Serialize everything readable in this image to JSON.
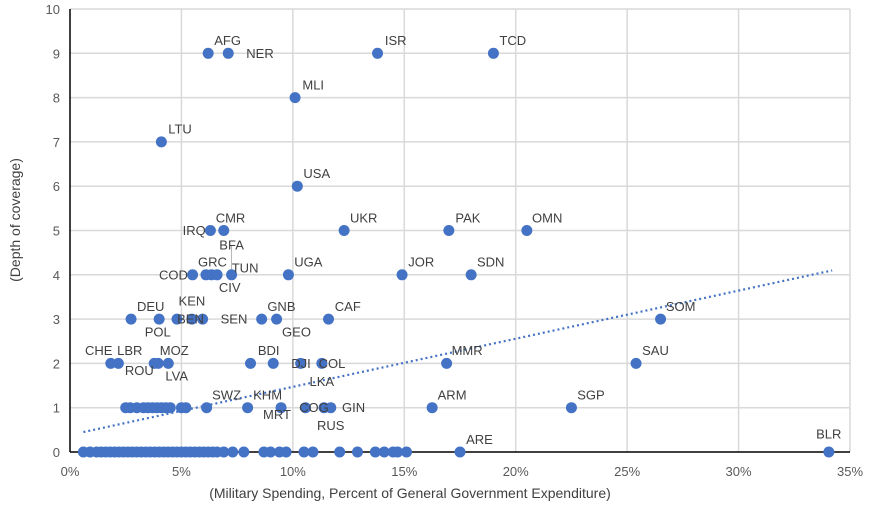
{
  "chart_data": {
    "type": "scatter",
    "title": "",
    "xlabel": "(Military Spending, Percent of General Government Expenditure)",
    "ylabel": "(Depth of coverage)",
    "xlim": [
      0,
      35
    ],
    "ylim": [
      0,
      10
    ],
    "x_ticks": [
      "0%",
      "5%",
      "10%",
      "15%",
      "20%",
      "25%",
      "30%",
      "35%"
    ],
    "y_ticks": [
      "0",
      "1",
      "2",
      "3",
      "4",
      "5",
      "6",
      "7",
      "8",
      "9",
      "10"
    ],
    "grid": true,
    "legend": "none",
    "marker_color": "#4472C4",
    "trendline": {
      "type": "linear",
      "color": "#4472C4",
      "style": "dotted",
      "intercept": 0.385,
      "slope": 0.1086,
      "x_range": [
        0.6,
        34.2
      ]
    },
    "labeled_points": [
      {
        "label": "AFG",
        "x": 6.2,
        "y": 9
      },
      {
        "label": "NER",
        "x": 7.1,
        "y": 9
      },
      {
        "label": "ISR",
        "x": 13.8,
        "y": 9
      },
      {
        "label": "TCD",
        "x": 19.0,
        "y": 9
      },
      {
        "label": "MLI",
        "x": 10.1,
        "y": 8
      },
      {
        "label": "LTU",
        "x": 4.1,
        "y": 7
      },
      {
        "label": "USA",
        "x": 10.2,
        "y": 6
      },
      {
        "label": "CMR",
        "x": 6.3,
        "y": 5
      },
      {
        "label": "IRQ",
        "x": 6.9,
        "y": 5
      },
      {
        "label": "UKR",
        "x": 12.3,
        "y": 5
      },
      {
        "label": "PAK",
        "x": 17.0,
        "y": 5
      },
      {
        "label": "OMN",
        "x": 20.5,
        "y": 5
      },
      {
        "label": "GRC",
        "x": 5.5,
        "y": 4
      },
      {
        "label": "COD",
        "x": 6.1,
        "y": 4
      },
      {
        "label": "CIV",
        "x": 6.35,
        "y": 4
      },
      {
        "label": "TUN",
        "x": 6.6,
        "y": 4
      },
      {
        "label": "BFA",
        "x": 7.25,
        "y": 4
      },
      {
        "label": "UGA",
        "x": 9.8,
        "y": 4
      },
      {
        "label": "JOR",
        "x": 14.9,
        "y": 4
      },
      {
        "label": "SDN",
        "x": 18.0,
        "y": 4
      },
      {
        "label": "DEU",
        "x": 2.74,
        "y": 3
      },
      {
        "label": "BEN",
        "x": 4.0,
        "y": 3
      },
      {
        "label": "POL",
        "x": 4.8,
        "y": 3
      },
      {
        "label": "KEN",
        "x": 5.47,
        "y": 3
      },
      {
        "label": "SEN",
        "x": 5.95,
        "y": 3
      },
      {
        "label": "GNB",
        "x": 8.6,
        "y": 3
      },
      {
        "label": "GEO",
        "x": 9.27,
        "y": 3
      },
      {
        "label": "CAF",
        "x": 11.6,
        "y": 3
      },
      {
        "label": "SOM",
        "x": 26.5,
        "y": 3
      },
      {
        "label": "LBR",
        "x": 1.83,
        "y": 2
      },
      {
        "label": "CHE",
        "x": 2.17,
        "y": 2
      },
      {
        "label": "MOZ",
        "x": 3.78,
        "y": 2
      },
      {
        "label": "LVA",
        "x": 3.96,
        "y": 2
      },
      {
        "label": "ROU",
        "x": 4.41,
        "y": 2
      },
      {
        "label": "BDI",
        "x": 8.1,
        "y": 2
      },
      {
        "label": "DJI",
        "x": 9.12,
        "y": 2
      },
      {
        "label": "COL",
        "x": 10.35,
        "y": 2
      },
      {
        "label": "LKA",
        "x": 11.3,
        "y": 2
      },
      {
        "label": "MMR",
        "x": 16.9,
        "y": 2
      },
      {
        "label": "SAU",
        "x": 25.4,
        "y": 2
      },
      {
        "label": "SWZ",
        "x": 6.13,
        "y": 1
      },
      {
        "label": "KHM",
        "x": 7.97,
        "y": 1
      },
      {
        "label": "COG",
        "x": 9.47,
        "y": 1
      },
      {
        "label": "MRT",
        "x": 10.57,
        "y": 1
      },
      {
        "label": "GIN",
        "x": 11.4,
        "y": 1
      },
      {
        "label": "RUS",
        "x": 11.7,
        "y": 1
      },
      {
        "label": "ARM",
        "x": 16.25,
        "y": 1
      },
      {
        "label": "SGP",
        "x": 22.5,
        "y": 1
      },
      {
        "label": "ARE",
        "x": 17.5,
        "y": 0
      },
      {
        "label": "BLR",
        "x": 34.05,
        "y": 0
      }
    ],
    "unlabeled_points": {
      "y1_x": [
        2.5,
        2.7,
        3.0,
        3.3,
        3.5,
        3.7,
        3.9,
        4.1,
        4.3,
        4.5,
        5.0,
        5.2
      ],
      "y0_x": [
        0.6,
        0.9,
        1.2,
        1.4,
        1.6,
        1.8,
        2.0,
        2.2,
        2.4,
        2.6,
        2.8,
        3.0,
        3.2,
        3.4,
        3.6,
        3.8,
        4.0,
        4.2,
        4.4,
        4.6,
        4.8,
        5.0,
        5.2,
        5.4,
        5.6,
        5.8,
        6.0,
        6.2,
        6.4,
        6.6,
        6.9,
        7.3,
        7.8,
        8.7,
        9.0,
        9.4,
        9.7,
        10.5,
        10.9,
        12.1,
        12.9,
        13.7,
        14.1,
        14.5,
        14.7,
        15.1
      ]
    }
  }
}
